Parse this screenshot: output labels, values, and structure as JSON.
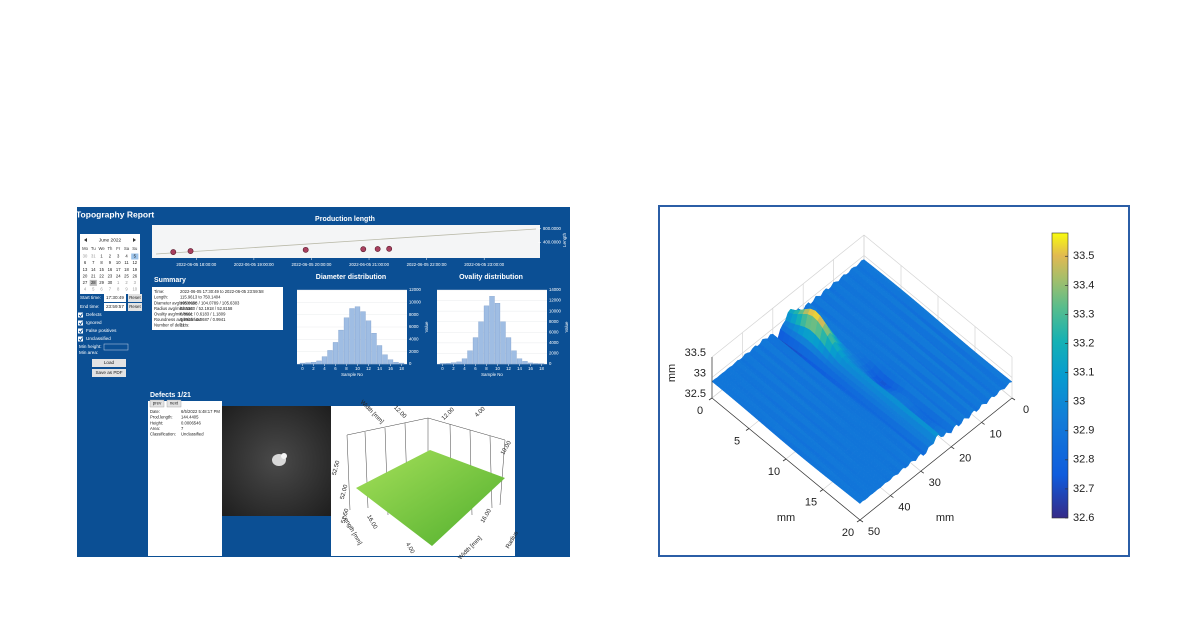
{
  "left_panel": {
    "title": "Topography Report",
    "calendar": {
      "month": "June 2022",
      "weekdays": [
        "Mo",
        "Tu",
        "We",
        "Th",
        "Fr",
        "Sa",
        "Su"
      ],
      "days": [
        [
          "30",
          "31",
          "1",
          "2",
          "3",
          "4",
          "5"
        ],
        [
          "6",
          "7",
          "8",
          "9",
          "10",
          "11",
          "12"
        ],
        [
          "13",
          "14",
          "15",
          "16",
          "17",
          "18",
          "19"
        ],
        [
          "20",
          "21",
          "22",
          "23",
          "24",
          "25",
          "26"
        ],
        [
          "27",
          "28",
          "29",
          "30",
          "1",
          "2",
          "3"
        ],
        [
          "4",
          "5",
          "6",
          "7",
          "8",
          "9",
          "10"
        ]
      ]
    },
    "filters": {
      "start_label": "Start time:",
      "start_value": "17:30:49",
      "end_label": "End time:",
      "end_value": "23:59:57",
      "reset": "Reset",
      "checkboxes": [
        "Defects",
        "Ignored",
        "False positives",
        "Unclassified"
      ],
      "min_height": "Min height:",
      "min_area": "Min area:",
      "load": "Load",
      "save": "Save as PDF"
    },
    "production_chart": {
      "type": "scatter",
      "title": "Production length",
      "y_label": "Length",
      "x": [
        17.6,
        17.9,
        19.9,
        20.9,
        21.15,
        21.35
      ],
      "values": [
        116,
        144,
        180,
        200,
        205,
        210
      ],
      "color": "#a8405f",
      "xlim": [
        17.3,
        23.9
      ],
      "xticks": [
        {
          "value": 18,
          "label": "2022-06-05 18:00:00"
        },
        {
          "value": 19,
          "label": "2022-06-05 19:00:00"
        },
        {
          "value": 20,
          "label": "2022-06-05 20:00:00"
        },
        {
          "value": 21,
          "label": "2022-06-05 21:00:00"
        },
        {
          "value": 22,
          "label": "2022-06-05 22:00:00"
        },
        {
          "value": 23,
          "label": "2022-06-05 23:00:00"
        }
      ],
      "ylim": [
        0,
        850
      ],
      "yticks": [
        {
          "value": 400,
          "label": "400.0000"
        },
        {
          "value": 800,
          "label": "800.0000"
        }
      ]
    },
    "summary": {
      "title": "Summary",
      "rows": [
        [
          "Time:",
          "2022-06-05 17:30:49 to 2022-06-05 23:59:58"
        ],
        [
          "Length:",
          "115.9613 to 750.1404"
        ],
        [
          "Diameter avg/min/max:",
          "105.0658 / 104.0789 / 105.6303"
        ],
        [
          "Radius avg/min/max:",
          "52.5360 / 52.1918 / 52.8158"
        ],
        [
          "Ovality avg/min/max:",
          "0.8961 / 0.6183 / 1.1809"
        ],
        [
          "Roundness avg/min/max:",
          "0.9915 / 0.8687 / 0.9941"
        ],
        [
          "Number of defects:",
          "21"
        ]
      ]
    },
    "diameter_chart": {
      "type": "bar",
      "title": "Diameter distribution",
      "x_label": "Sample No",
      "y_label": "Value",
      "x": [
        0,
        1,
        2,
        3,
        4,
        5,
        6,
        7,
        8,
        9,
        10,
        11,
        12,
        13,
        14,
        15,
        16,
        17,
        18
      ],
      "values": [
        150,
        200,
        300,
        500,
        1200,
        2200,
        3500,
        5500,
        7500,
        9000,
        9300,
        8500,
        7000,
        5000,
        3000,
        1500,
        700,
        300,
        150
      ],
      "color": "#9fbde3",
      "xlim": [
        -1,
        19
      ],
      "xticks": [
        0,
        2,
        4,
        6,
        8,
        10,
        12,
        14,
        16,
        18
      ],
      "ylim": [
        0,
        12000
      ],
      "yticks": [
        0,
        2000,
        4000,
        6000,
        8000,
        10000,
        12000
      ]
    },
    "ovality_chart": {
      "type": "bar",
      "title": "Ovality distribution",
      "x_label": "Sample No",
      "y_label": "Value",
      "x": [
        0,
        1,
        2,
        3,
        4,
        5,
        6,
        7,
        8,
        9,
        10,
        11,
        12,
        13,
        14,
        15,
        16,
        17,
        18
      ],
      "values": [
        100,
        150,
        250,
        400,
        1000,
        2500,
        5000,
        8000,
        11000,
        12800,
        11500,
        8000,
        5000,
        2500,
        1000,
        500,
        200,
        100,
        50
      ],
      "color": "#9fbde3",
      "xlim": [
        -1,
        19
      ],
      "xticks": [
        0,
        2,
        4,
        6,
        8,
        10,
        12,
        14,
        16,
        18
      ],
      "ylim": [
        0,
        14000
      ],
      "yticks": [
        0,
        2000,
        4000,
        6000,
        8000,
        10000,
        12000,
        14000
      ]
    },
    "defects": {
      "title": "Defects 1/21",
      "prev": "prev",
      "next": "next",
      "rows": [
        [
          "Date:",
          "6/5/2022 5:48:17 PM"
        ],
        [
          "Prod.length:",
          "144.4405"
        ],
        [
          "Height:",
          "0.0006546"
        ],
        [
          "Area:",
          "7"
        ],
        [
          "Classification:",
          "Unclassified"
        ]
      ]
    },
    "defect_plot": {
      "labels": [
        "Width [mm]",
        "12.00",
        "12.00",
        "52.50",
        "52.00",
        "51.50",
        "16.00",
        "Length [mm]",
        "4.00",
        "4.00",
        "Width [mm]",
        "Radius",
        "16.00",
        "10.00"
      ]
    }
  },
  "surface_plot": {
    "type": "surface",
    "x_label": "mm",
    "y_label": "mm",
    "z_label": "mm",
    "xlim": [
      0,
      20
    ],
    "xticks": [
      0,
      5,
      10,
      15,
      20
    ],
    "ylim": [
      0,
      50
    ],
    "yticks": [
      0,
      10,
      20,
      30,
      40,
      50
    ],
    "zlim": [
      32.5,
      33.5
    ],
    "zticks": [
      32.5,
      33,
      33.5
    ],
    "clim": [
      32.6,
      33.58
    ],
    "cticks": [
      32.6,
      32.7,
      32.8,
      32.9,
      33,
      33.1,
      33.2,
      33.3,
      33.4,
      33.5
    ],
    "colormap": "parula",
    "grid": true
  }
}
